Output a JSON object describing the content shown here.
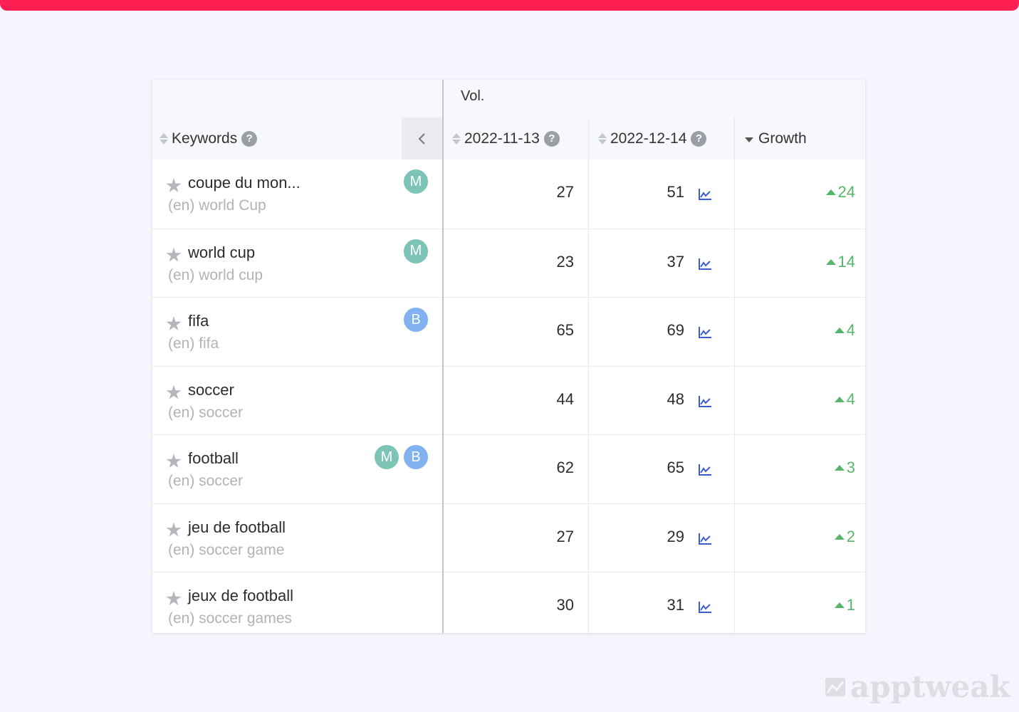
{
  "header": {
    "vol_label": "Vol.",
    "keywords_label": "Keywords",
    "date1_label": "2022-11-13",
    "date2_label": "2022-12-14",
    "growth_label": "Growth",
    "help_glyph": "?"
  },
  "rows": [
    {
      "keyword": "coupe du mon...",
      "translation": "(en) world Cup",
      "avatars": [
        "M"
      ],
      "vol1": "27",
      "vol2": "51",
      "growth": "24"
    },
    {
      "keyword": "world cup",
      "translation": "(en) world cup",
      "avatars": [
        "M"
      ],
      "vol1": "23",
      "vol2": "37",
      "growth": "14"
    },
    {
      "keyword": "fifa",
      "translation": "(en) fifa",
      "avatars": [
        "B"
      ],
      "vol1": "65",
      "vol2": "69",
      "growth": "4"
    },
    {
      "keyword": "soccer",
      "translation": "(en) soccer",
      "avatars": [],
      "vol1": "44",
      "vol2": "48",
      "growth": "4"
    },
    {
      "keyword": "football",
      "translation": "(en) soccer",
      "avatars": [
        "M",
        "B"
      ],
      "vol1": "62",
      "vol2": "65",
      "growth": "3"
    },
    {
      "keyword": "jeu de football",
      "translation": "(en) soccer game",
      "avatars": [],
      "vol1": "27",
      "vol2": "29",
      "growth": "2"
    },
    {
      "keyword": "jeux de football",
      "translation": "(en) soccer games",
      "avatars": [],
      "vol1": "30",
      "vol2": "31",
      "growth": "1"
    }
  ],
  "watermark": "apptweak",
  "colors": {
    "accent_bar": "#fe2053",
    "growth": "#55b56a",
    "avatar_m": "#7cc4b6",
    "avatar_b": "#7fb2ee",
    "chart_icon": "#3b5bdb"
  }
}
